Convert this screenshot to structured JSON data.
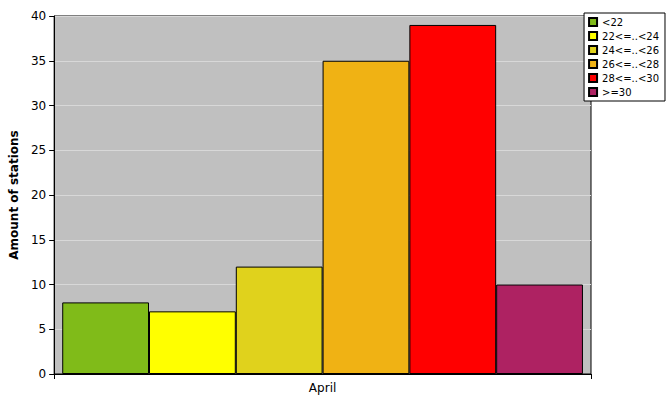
{
  "chart_data": {
    "type": "bar",
    "y_label": "Amount of stations",
    "categories": [
      "April"
    ],
    "series": [
      {
        "name": "<22",
        "color": "#80bb19",
        "values": [
          8
        ]
      },
      {
        "name": "22<=..<24",
        "color": "#ffff00",
        "values": [
          7
        ]
      },
      {
        "name": "24<=..<26",
        "color": "#e0d21c",
        "values": [
          12
        ]
      },
      {
        "name": "26<=..<28",
        "color": "#f0b214",
        "values": [
          35
        ]
      },
      {
        "name": "28<=..<30",
        "color": "#ff0000",
        "values": [
          39
        ]
      },
      {
        "name": ">=30",
        "color": "#ae2262",
        "values": [
          10
        ]
      }
    ],
    "ylim": [
      0,
      40
    ],
    "yticks": [
      0,
      5,
      10,
      15,
      20,
      25,
      30,
      35,
      40
    ],
    "grid": true,
    "legend": "top-right"
  }
}
